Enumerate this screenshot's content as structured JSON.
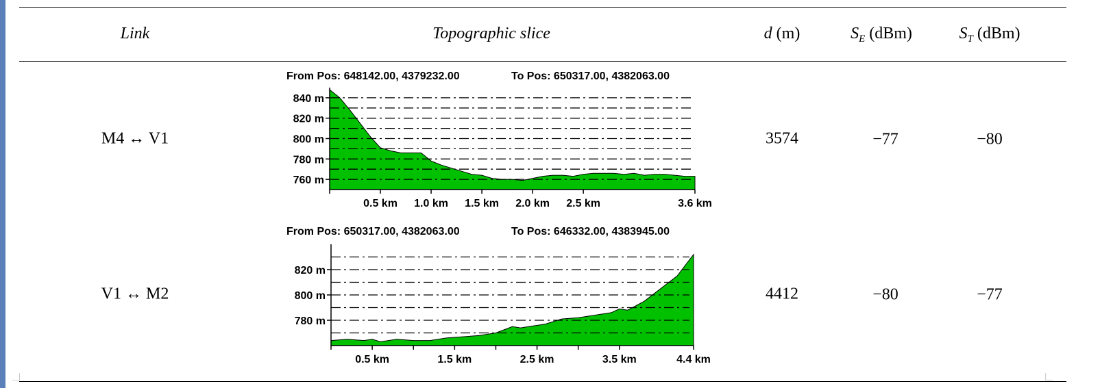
{
  "header": {
    "link": "Link",
    "slice": "Topographic slice",
    "d_sym": "d",
    "d_unit": " (m)",
    "se_sym": "S",
    "se_sub": "E",
    "se_unit": " (dBm)",
    "st_sym": "S",
    "st_sub": "T",
    "st_unit": " (dBm)"
  },
  "rows": [
    {
      "link": "M4 ↔ V1",
      "d": "3574",
      "se": "−77",
      "st": "−80"
    },
    {
      "link": "V1 ↔ M2",
      "d": "4412",
      "se": "−80",
      "st": "−77"
    }
  ],
  "chart_data": [
    {
      "type": "area",
      "from_label": "From Pos: 648142.00, 4379232.00",
      "to_label": "To Pos: 650317.00, 4382063.00",
      "ylim": [
        750,
        850
      ],
      "xlim": [
        0,
        3.6
      ],
      "yticks": [
        760,
        780,
        800,
        820,
        840
      ],
      "ytick_labels": [
        "760 m",
        "780 m",
        "800 m",
        "820 m",
        "840 m"
      ],
      "gridlines": [
        760,
        770,
        780,
        790,
        800,
        810,
        820,
        830,
        840
      ],
      "xticks": [
        0.5,
        1.0,
        1.5,
        2.0,
        2.5,
        3.6
      ],
      "xtick_labels": [
        "0.5 km",
        "1.0 km",
        "1.5 km",
        "2.0 km",
        "2.5 km",
        "3.6 km"
      ],
      "fill_color": "#00c000",
      "x": [
        0,
        0.1,
        0.2,
        0.3,
        0.4,
        0.5,
        0.6,
        0.7,
        0.8,
        0.9,
        1.0,
        1.1,
        1.2,
        1.3,
        1.4,
        1.5,
        1.6,
        1.7,
        1.8,
        1.9,
        2.0,
        2.1,
        2.2,
        2.3,
        2.4,
        2.5,
        2.6,
        2.7,
        2.8,
        2.9,
        3.0,
        3.1,
        3.2,
        3.3,
        3.4,
        3.5,
        3.6
      ],
      "y": [
        848,
        840,
        828,
        815,
        802,
        791,
        788,
        786,
        786,
        786,
        778,
        774,
        771,
        768,
        765,
        764,
        761,
        760,
        760,
        759,
        761,
        763,
        764,
        764,
        763,
        765,
        766,
        766,
        766,
        765,
        766,
        764,
        765,
        765,
        764,
        763,
        763
      ]
    },
    {
      "type": "area",
      "from_label": "From Pos: 650317.00, 4382063.00",
      "to_label": "To Pos: 646332.00, 4383945.00",
      "ylim": [
        760,
        840
      ],
      "xlim": [
        0,
        4.4
      ],
      "yticks": [
        780,
        800,
        820
      ],
      "ytick_labels": [
        "780 m",
        "800 m",
        "820 m"
      ],
      "gridlines": [
        770,
        780,
        790,
        800,
        810,
        820,
        830
      ],
      "xticks": [
        0.5,
        1.0,
        1.5,
        2.0,
        2.5,
        3.0,
        3.5,
        4.4
      ],
      "xtick_labels": [
        "0.5 km",
        "",
        "1.5 km",
        "",
        "2.5 km",
        "",
        "3.5 km",
        "4.4 km"
      ],
      "fill_color": "#00c000",
      "x": [
        0,
        0.2,
        0.4,
        0.5,
        0.6,
        0.8,
        1.0,
        1.2,
        1.4,
        1.6,
        1.8,
        2.0,
        2.2,
        2.3,
        2.4,
        2.6,
        2.8,
        3.0,
        3.2,
        3.4,
        3.5,
        3.6,
        3.8,
        4.0,
        4.2,
        4.4
      ],
      "y": [
        764,
        765,
        764,
        765,
        763,
        765,
        764,
        764,
        766,
        767,
        768,
        770,
        775,
        774,
        775,
        777,
        781,
        782,
        784,
        786,
        789,
        788,
        795,
        805,
        815,
        832
      ]
    }
  ]
}
